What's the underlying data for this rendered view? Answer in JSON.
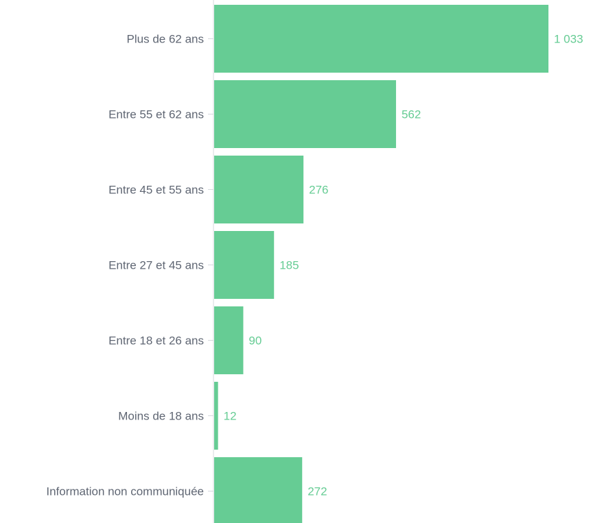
{
  "chart_data": {
    "type": "bar",
    "orientation": "horizontal",
    "categories": [
      "Plus de 62 ans",
      "Entre 55 et 62 ans",
      "Entre 45 et 55 ans",
      "Entre 27 et 45 ans",
      "Entre 18 et 26 ans",
      "Moins de 18 ans",
      "Information non communiquée"
    ],
    "values": [
      1033,
      562,
      276,
      185,
      90,
      12,
      272
    ],
    "value_labels": [
      "1 033",
      "562",
      "276",
      "185",
      "90",
      "12",
      "272"
    ],
    "title": "",
    "xlabel": "",
    "ylabel": "",
    "xlim": [
      0,
      1033
    ],
    "grid": false,
    "legend": "none",
    "bar_color": "#66cc94",
    "label_color": "#66cc94",
    "axis_color": "#d5d8dd"
  }
}
